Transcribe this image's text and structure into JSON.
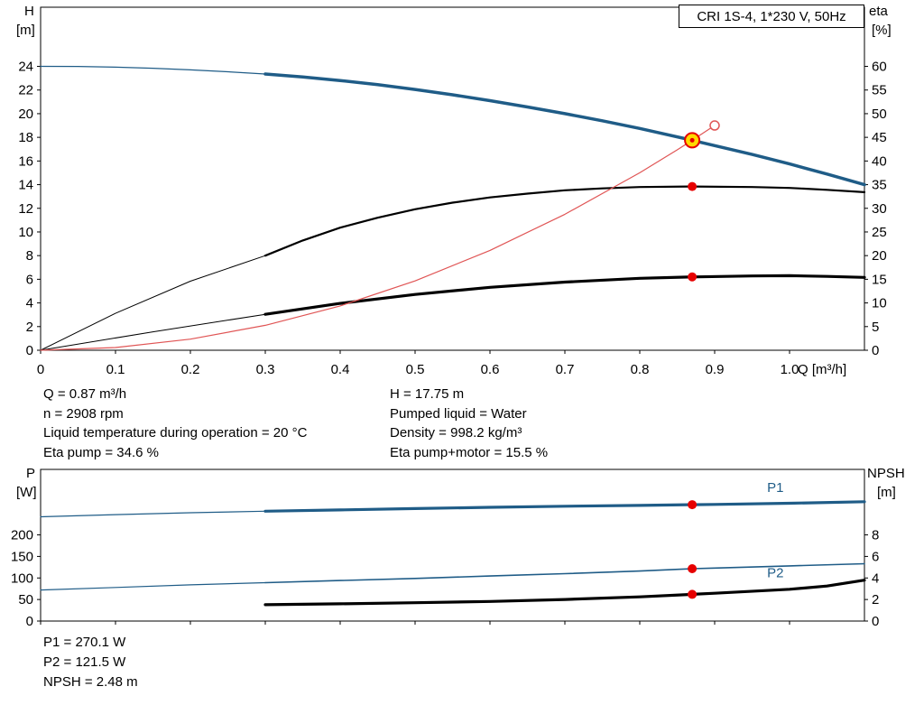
{
  "title_box": "CRI 1S-4, 1*230 V, 50Hz",
  "accent_colors": {
    "curve_blue": "#1f5c87",
    "marker_red": "#e60000",
    "system_red": "#e05555",
    "duty_yellow": "#ffd800",
    "curve_black": "#000000"
  },
  "axis_labels": {
    "top_left_1": "H",
    "top_left_2": "[m]",
    "top_right_1": "eta",
    "top_right_2": "[%]",
    "x": "Q [m³/h]",
    "bottom_left_1": "P",
    "bottom_left_2": "[W]",
    "bottom_right_1": "NPSH",
    "bottom_right_2": "[m]"
  },
  "operating_point_info": {
    "left": [
      "Q = 0.87 m³/h",
      "n = 2908 rpm",
      "Liquid temperature during operation = 20 °C",
      "Eta pump = 34.6 %"
    ],
    "right": [
      "H = 17.75 m",
      "Pumped liquid = Water",
      "Density = 998.2 kg/m³",
      "Eta pump+motor = 15.5 %"
    ]
  },
  "power_info": [
    "P1 = 270.1 W",
    "P2 = 121.5 W",
    "NPSH = 2.48 m"
  ],
  "chart_data": [
    {
      "type": "line",
      "name": "head-efficiency-chart",
      "px": [
        45,
        8,
        913,
        380
      ],
      "xlim": [
        0,
        1.1
      ],
      "ylim": [
        0,
        29
      ],
      "y2lim": [
        0,
        72.5
      ],
      "xlabel": "Q [m³/h]",
      "ylabel": "H [m]",
      "y2label": "eta [%]",
      "xticks": [
        0,
        0.1,
        0.2,
        0.3,
        0.4,
        0.5,
        0.6,
        0.7,
        0.8,
        0.9,
        1.0
      ],
      "xtick_labels": [
        "0",
        "0.1",
        "0.2",
        "0.3",
        "0.4",
        "0.5",
        "0.6",
        "0.7",
        "0.8",
        "0.9",
        "1.0"
      ],
      "yticks": [
        0,
        2,
        4,
        6,
        8,
        10,
        12,
        14,
        16,
        18,
        20,
        22,
        24
      ],
      "ytick_labels": [
        "0",
        "2",
        "4",
        "6",
        "8",
        "10",
        "12",
        "14",
        "16",
        "18",
        "20",
        "22",
        "24"
      ],
      "y2ticks": [
        0,
        5,
        10,
        15,
        20,
        25,
        30,
        35,
        40,
        45,
        50,
        55,
        60
      ],
      "y2tick_labels": [
        "0",
        "5",
        "10",
        "15",
        "20",
        "25",
        "30",
        "35",
        "40",
        "45",
        "50",
        "55",
        "60"
      ],
      "series": [
        {
          "name": "hq-curve-thin",
          "axis": "y",
          "color": "#1f5c87",
          "width": 1.2,
          "points": [
            [
              0,
              24
            ],
            [
              0.05,
              23.99
            ],
            [
              0.1,
              23.93
            ],
            [
              0.15,
              23.84
            ],
            [
              0.2,
              23.7
            ],
            [
              0.25,
              23.54
            ],
            [
              0.3,
              23.35
            ]
          ]
        },
        {
          "name": "hq-curve",
          "axis": "y",
          "color": "#1f5c87",
          "width": 3.5,
          "points": [
            [
              0.3,
              23.35
            ],
            [
              0.35,
              23.1
            ],
            [
              0.4,
              22.8
            ],
            [
              0.45,
              22.45
            ],
            [
              0.5,
              22.05
            ],
            [
              0.55,
              21.6
            ],
            [
              0.6,
              21.1
            ],
            [
              0.65,
              20.57
            ],
            [
              0.7,
              20.0
            ],
            [
              0.75,
              19.4
            ],
            [
              0.8,
              18.75
            ],
            [
              0.87,
              17.75
            ],
            [
              0.9,
              17.3
            ],
            [
              0.95,
              16.55
            ],
            [
              1.0,
              15.75
            ],
            [
              1.05,
              14.9
            ],
            [
              1.1,
              14.0
            ]
          ]
        },
        {
          "name": "eta-pump-curve-thin",
          "axis": "y2",
          "color": "#000000",
          "width": 1,
          "points": [
            [
              0,
              0
            ],
            [
              0.1,
              7.8
            ],
            [
              0.2,
              14.6
            ],
            [
              0.3,
              20.0
            ]
          ]
        },
        {
          "name": "eta-pump-curve",
          "axis": "y2",
          "color": "#000000",
          "width": 2.2,
          "points": [
            [
              0.3,
              20.0
            ],
            [
              0.35,
              23.2
            ],
            [
              0.4,
              25.9
            ],
            [
              0.45,
              28.0
            ],
            [
              0.5,
              29.8
            ],
            [
              0.55,
              31.2
            ],
            [
              0.6,
              32.3
            ],
            [
              0.65,
              33.1
            ],
            [
              0.7,
              33.8
            ],
            [
              0.75,
              34.2
            ],
            [
              0.8,
              34.5
            ],
            [
              0.87,
              34.6
            ],
            [
              0.95,
              34.5
            ],
            [
              1.0,
              34.3
            ],
            [
              1.05,
              33.9
            ],
            [
              1.1,
              33.4
            ]
          ]
        },
        {
          "name": "eta-pump-motor-curve-thin",
          "axis": "y2",
          "color": "#000000",
          "width": 1,
          "points": [
            [
              0,
              0
            ],
            [
              0.15,
              3.9
            ],
            [
              0.3,
              7.6
            ]
          ]
        },
        {
          "name": "eta-pump-motor-curve",
          "axis": "y2",
          "color": "#000000",
          "width": 3.2,
          "points": [
            [
              0.3,
              7.6
            ],
            [
              0.4,
              9.9
            ],
            [
              0.5,
              11.8
            ],
            [
              0.6,
              13.3
            ],
            [
              0.7,
              14.4
            ],
            [
              0.8,
              15.2
            ],
            [
              0.87,
              15.5
            ],
            [
              0.95,
              15.7
            ],
            [
              1.0,
              15.75
            ],
            [
              1.05,
              15.6
            ],
            [
              1.1,
              15.4
            ]
          ]
        },
        {
          "name": "system-curve",
          "axis": "y",
          "color": "#e05555",
          "width": 1.2,
          "points": [
            [
              0,
              0
            ],
            [
              0.1,
              0.23
            ],
            [
              0.2,
              0.94
            ],
            [
              0.3,
              2.11
            ],
            [
              0.4,
              3.75
            ],
            [
              0.5,
              5.86
            ],
            [
              0.6,
              8.44
            ],
            [
              0.7,
              11.49
            ],
            [
              0.8,
              15.0
            ],
            [
              0.85,
              16.94
            ],
            [
              0.87,
              17.75
            ],
            [
              0.9,
              19.0
            ]
          ]
        }
      ],
      "markers": [
        {
          "name": "eta-pump-point",
          "type": "dot",
          "x": 0.87,
          "y": 34.6,
          "axis": "y2",
          "color": "#e60000",
          "r": 5
        },
        {
          "name": "eta-pump-motor-point",
          "type": "dot",
          "x": 0.87,
          "y": 15.5,
          "axis": "y2",
          "color": "#e60000",
          "r": 5
        },
        {
          "name": "system-curve-end-ring",
          "type": "ring",
          "x": 0.9,
          "y": 19.0,
          "axis": "y",
          "stroke": "#e05555",
          "r": 5
        },
        {
          "name": "duty-point",
          "type": "duty",
          "x": 0.87,
          "y": 17.75,
          "axis": "y",
          "fill": "#ffd800",
          "stroke": "#e60000",
          "r": 8
        }
      ],
      "labels": []
    },
    {
      "type": "line",
      "name": "power-npsh-chart",
      "px": [
        45,
        520,
        913,
        168
      ],
      "xlim": [
        0,
        1.1
      ],
      "ylim": [
        0,
        352
      ],
      "y2lim": [
        0,
        14.08
      ],
      "xlabel": "",
      "ylabel": "P [W]",
      "y2label": "NPSH [m]",
      "xticks": [
        0,
        0.1,
        0.2,
        0.3,
        0.4,
        0.5,
        0.6,
        0.7,
        0.8,
        0.9,
        1.0
      ],
      "xtick_labels": null,
      "yticks": [
        0,
        50,
        100,
        150,
        200
      ],
      "ytick_labels": [
        "0",
        "50",
        "100",
        "150",
        "200"
      ],
      "y2ticks": [
        0,
        2,
        4,
        6,
        8
      ],
      "y2tick_labels": [
        "0",
        "2",
        "4",
        "6",
        "8"
      ],
      "series": [
        {
          "name": "p1-curve-thin",
          "axis": "y",
          "color": "#1f5c87",
          "width": 1.2,
          "points": [
            [
              0,
              242
            ],
            [
              0.1,
              247
            ],
            [
              0.2,
              251.5
            ],
            [
              0.3,
              255
            ]
          ]
        },
        {
          "name": "p1-curve",
          "axis": "y",
          "color": "#1f5c87",
          "width": 3.2,
          "points": [
            [
              0.3,
              255
            ],
            [
              0.4,
              258
            ],
            [
              0.5,
              261
            ],
            [
              0.6,
              264
            ],
            [
              0.7,
              266.5
            ],
            [
              0.8,
              268.5
            ],
            [
              0.87,
              270.1
            ],
            [
              0.9,
              270.8
            ],
            [
              1.0,
              273.5
            ],
            [
              1.1,
              277
            ]
          ]
        },
        {
          "name": "p2-curve-thin",
          "axis": "y",
          "color": "#1f5c87",
          "width": 1.2,
          "points": [
            [
              0,
              72
            ],
            [
              0.1,
              78
            ],
            [
              0.2,
              84
            ],
            [
              0.3,
              89
            ]
          ]
        },
        {
          "name": "p2-curve",
          "axis": "y",
          "color": "#1f5c87",
          "width": 1.6,
          "points": [
            [
              0.3,
              89
            ],
            [
              0.4,
              94
            ],
            [
              0.5,
              99
            ],
            [
              0.6,
              104.5
            ],
            [
              0.7,
              110
            ],
            [
              0.8,
              116
            ],
            [
              0.87,
              121.5
            ],
            [
              0.9,
              123
            ],
            [
              1.0,
              128
            ],
            [
              1.1,
              133
            ]
          ]
        },
        {
          "name": "npsh-curve",
          "axis": "y2",
          "color": "#000000",
          "width": 3.2,
          "points": [
            [
              0.3,
              1.52
            ],
            [
              0.4,
              1.6
            ],
            [
              0.5,
              1.7
            ],
            [
              0.6,
              1.82
            ],
            [
              0.7,
              2.0
            ],
            [
              0.8,
              2.25
            ],
            [
              0.87,
              2.48
            ],
            [
              0.9,
              2.58
            ],
            [
              1.0,
              2.95
            ],
            [
              1.05,
              3.25
            ],
            [
              1.1,
              3.8
            ]
          ]
        }
      ],
      "markers": [
        {
          "name": "p1-point",
          "type": "dot",
          "x": 0.87,
          "y": 270.1,
          "axis": "y",
          "color": "#e60000",
          "r": 5
        },
        {
          "name": "p2-point",
          "type": "dot",
          "x": 0.87,
          "y": 121.5,
          "axis": "y",
          "color": "#e60000",
          "r": 5
        },
        {
          "name": "npsh-point",
          "type": "dot",
          "x": 0.87,
          "y": 2.48,
          "axis": "y2",
          "color": "#e60000",
          "r": 5
        }
      ],
      "labels": [
        {
          "name": "p1-label",
          "x": 0.97,
          "y": 300,
          "axis": "y",
          "text": "P1",
          "color": "#1f5c87"
        },
        {
          "name": "p2-label",
          "x": 0.97,
          "y": 102,
          "axis": "y",
          "text": "P2",
          "color": "#1f5c87"
        }
      ]
    }
  ]
}
